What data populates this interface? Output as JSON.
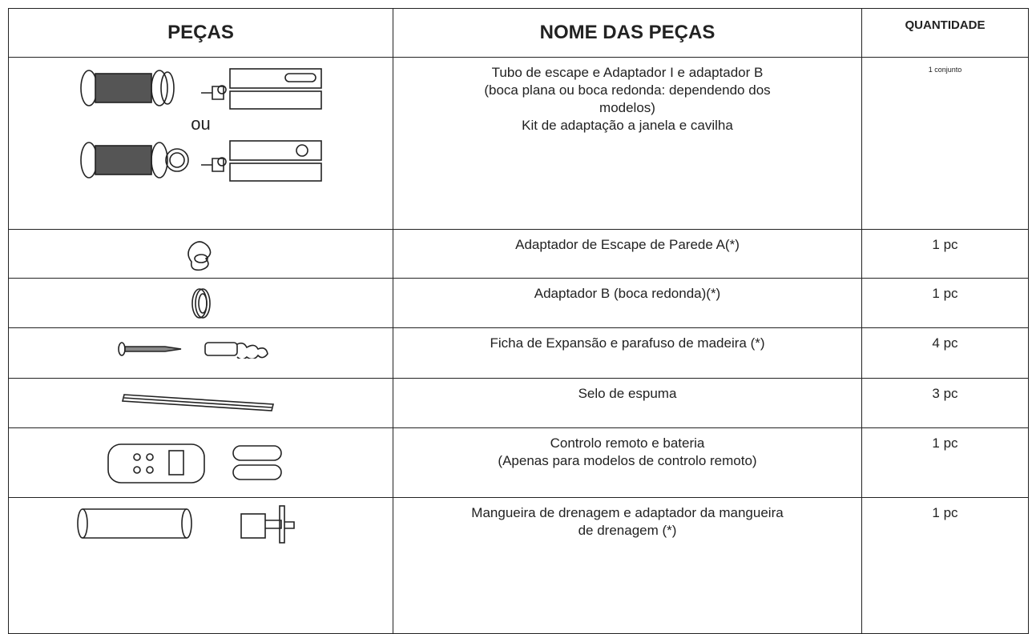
{
  "table": {
    "headers": [
      "PEÇAS",
      "NOME DAS PEÇAS",
      "QUANTIDADE"
    ],
    "rows": [
      {
        "parts_label": "ou",
        "name": [
          "Tubo de escape e Adaptador I e adaptador B",
          "(boca plana ou boca redonda: dependendo dos",
          "modelos)",
          "Kit de adaptação a janela e cavilha"
        ],
        "quantity": "1 conjunto"
      },
      {
        "name": [
          "Adaptador de Escape de Parede A(*)"
        ],
        "quantity": "1 pc"
      },
      {
        "name": [
          "Adaptador B (boca redonda)(*)"
        ],
        "quantity": "1 pc"
      },
      {
        "name": [
          "Ficha de Expansão e parafuso de madeira (*)"
        ],
        "quantity": "4 pc"
      },
      {
        "name": [
          "Selo de espuma"
        ],
        "quantity": "3 pc"
      },
      {
        "name": [
          "Controlo remoto e bateria",
          "(Apenas para modelos de controlo remoto)"
        ],
        "quantity": "1 pc"
      },
      {
        "name": [
          "Mangueira de drenagem e adaptador da mangueira",
          "de drenagem (*)"
        ],
        "quantity": "1 pc"
      }
    ]
  }
}
